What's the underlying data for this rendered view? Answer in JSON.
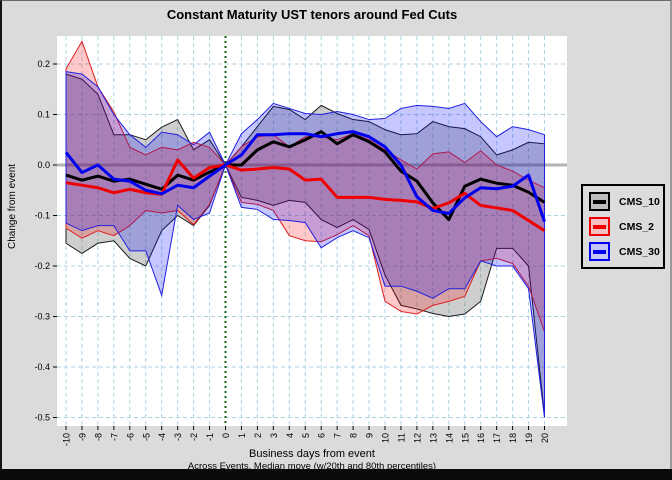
{
  "figure": {
    "title": "Constant Maturity UST tenors around Fed Cuts",
    "xlabel": "Business days from event",
    "xlabel2": "Across Events, Median move (w/20th and 80th percentiles)",
    "ylabel": "Change from event"
  },
  "chart_data": {
    "type": "line",
    "title": "Constant Maturity UST tenors around Fed Cuts",
    "xlabel": "Business days from event",
    "subtitle": "Across Events, Median move (w/20th and 80th percentiles)",
    "ylabel": "Change from event",
    "x": [
      -10,
      -9,
      -8,
      -7,
      -6,
      -5,
      -4,
      -3,
      -2,
      -1,
      0,
      1,
      2,
      3,
      4,
      5,
      6,
      7,
      8,
      9,
      10,
      11,
      12,
      13,
      14,
      15,
      16,
      17,
      18,
      19,
      20
    ],
    "y_ticks": [
      0.2,
      0.1,
      0.0,
      -0.1,
      -0.2,
      -0.3,
      -0.4,
      -0.5
    ],
    "ylim": [
      -0.52,
      0.26
    ],
    "xlim": [
      -10.5,
      21.4
    ],
    "grid": true,
    "legend_position": "right",
    "event_line_x": 0,
    "colors": {
      "figure_bg": "#dbdbdb",
      "plot_bg": "#ffffff",
      "grid": "#aed2e2",
      "zero_line": "#b3b3b3",
      "event_line": "#156615",
      "tick_text": "#000000"
    },
    "series": [
      {
        "name": "CMS_10",
        "line_color": "#000000",
        "band_edge_color": "#1a1a1a",
        "band_fill": "rgba(80,80,80,0.28)",
        "swatch_fill": "#bdbdbd",
        "median": [
          -0.02,
          -0.03,
          -0.022,
          -0.032,
          -0.028,
          -0.038,
          -0.048,
          -0.02,
          -0.03,
          -0.014,
          0.0,
          0.0,
          0.03,
          0.046,
          0.036,
          0.05,
          0.066,
          0.042,
          0.06,
          0.046,
          0.026,
          -0.012,
          -0.032,
          -0.075,
          -0.108,
          -0.042,
          -0.028,
          -0.036,
          -0.04,
          -0.054,
          -0.074
        ],
        "p20": [
          -0.155,
          -0.175,
          -0.155,
          -0.15,
          -0.185,
          -0.2,
          -0.13,
          -0.1,
          -0.12,
          -0.08,
          0.0,
          -0.064,
          -0.07,
          -0.08,
          -0.07,
          -0.074,
          -0.108,
          -0.124,
          -0.108,
          -0.128,
          -0.218,
          -0.278,
          -0.285,
          -0.294,
          -0.3,
          -0.295,
          -0.27,
          -0.165,
          -0.165,
          -0.2,
          -0.496
        ],
        "p80": [
          0.18,
          0.17,
          0.14,
          0.06,
          0.06,
          0.05,
          0.075,
          0.09,
          0.03,
          0.05,
          0.0,
          0.036,
          0.076,
          0.116,
          0.11,
          0.09,
          0.118,
          0.102,
          0.09,
          0.086,
          0.07,
          0.06,
          0.062,
          0.086,
          0.076,
          0.072,
          0.056,
          0.02,
          0.03,
          0.045,
          0.042
        ]
      },
      {
        "name": "CMS_2",
        "line_color": "#ee0000",
        "band_edge_color": "#e02020",
        "band_fill": "rgba(255,0,0,0.21)",
        "swatch_fill": "#f5c0c0",
        "median": [
          -0.035,
          -0.04,
          -0.045,
          -0.055,
          -0.048,
          -0.055,
          -0.058,
          0.01,
          -0.026,
          -0.005,
          0.0,
          -0.01,
          -0.008,
          -0.005,
          -0.008,
          -0.03,
          -0.028,
          -0.064,
          -0.064,
          -0.064,
          -0.068,
          -0.07,
          -0.073,
          -0.086,
          -0.075,
          -0.056,
          -0.08,
          -0.085,
          -0.09,
          -0.11,
          -0.13
        ],
        "p20": [
          -0.125,
          -0.145,
          -0.13,
          -0.14,
          -0.12,
          -0.09,
          -0.095,
          -0.09,
          -0.118,
          -0.078,
          0.0,
          -0.074,
          -0.078,
          -0.09,
          -0.14,
          -0.15,
          -0.152,
          -0.138,
          -0.12,
          -0.14,
          -0.27,
          -0.29,
          -0.295,
          -0.278,
          -0.27,
          -0.26,
          -0.19,
          -0.185,
          -0.195,
          -0.24,
          -0.33
        ],
        "p80": [
          0.19,
          0.245,
          0.155,
          0.105,
          0.035,
          0.02,
          0.035,
          0.03,
          0.045,
          0.035,
          0.0,
          0.036,
          0.056,
          0.06,
          0.036,
          0.056,
          0.056,
          0.05,
          0.062,
          0.05,
          0.03,
          0.01,
          -0.008,
          0.022,
          0.026,
          0.005,
          0.028,
          0.0,
          -0.012,
          -0.03,
          -0.045
        ]
      },
      {
        "name": "CMS_30",
        "line_color": "#0000ee",
        "band_edge_color": "#2020e0",
        "band_fill": "rgba(0,0,255,0.22)",
        "swatch_fill": "#c5c5f5",
        "median": [
          0.025,
          -0.015,
          0.0,
          -0.028,
          -0.032,
          -0.05,
          -0.057,
          -0.04,
          -0.045,
          -0.022,
          0.0,
          0.02,
          0.06,
          0.06,
          0.062,
          0.062,
          0.056,
          0.062,
          0.066,
          0.056,
          0.036,
          0.0,
          -0.063,
          -0.09,
          -0.096,
          -0.065,
          -0.045,
          -0.047,
          -0.042,
          -0.02,
          -0.112
        ],
        "p20": [
          -0.115,
          -0.13,
          -0.12,
          -0.12,
          -0.17,
          -0.17,
          -0.258,
          -0.08,
          -0.108,
          -0.095,
          0.0,
          -0.084,
          -0.088,
          -0.108,
          -0.11,
          -0.114,
          -0.164,
          -0.144,
          -0.13,
          -0.144,
          -0.24,
          -0.24,
          -0.25,
          -0.264,
          -0.245,
          -0.245,
          -0.19,
          -0.2,
          -0.2,
          -0.245,
          -0.5
        ],
        "p80": [
          0.185,
          0.18,
          0.155,
          0.1,
          0.06,
          0.035,
          0.065,
          0.06,
          0.04,
          0.065,
          0.0,
          0.062,
          0.09,
          0.122,
          0.112,
          0.102,
          0.1,
          0.106,
          0.1,
          0.09,
          0.092,
          0.112,
          0.118,
          0.116,
          0.112,
          0.122,
          0.086,
          0.056,
          0.076,
          0.07,
          0.06
        ]
      }
    ]
  }
}
